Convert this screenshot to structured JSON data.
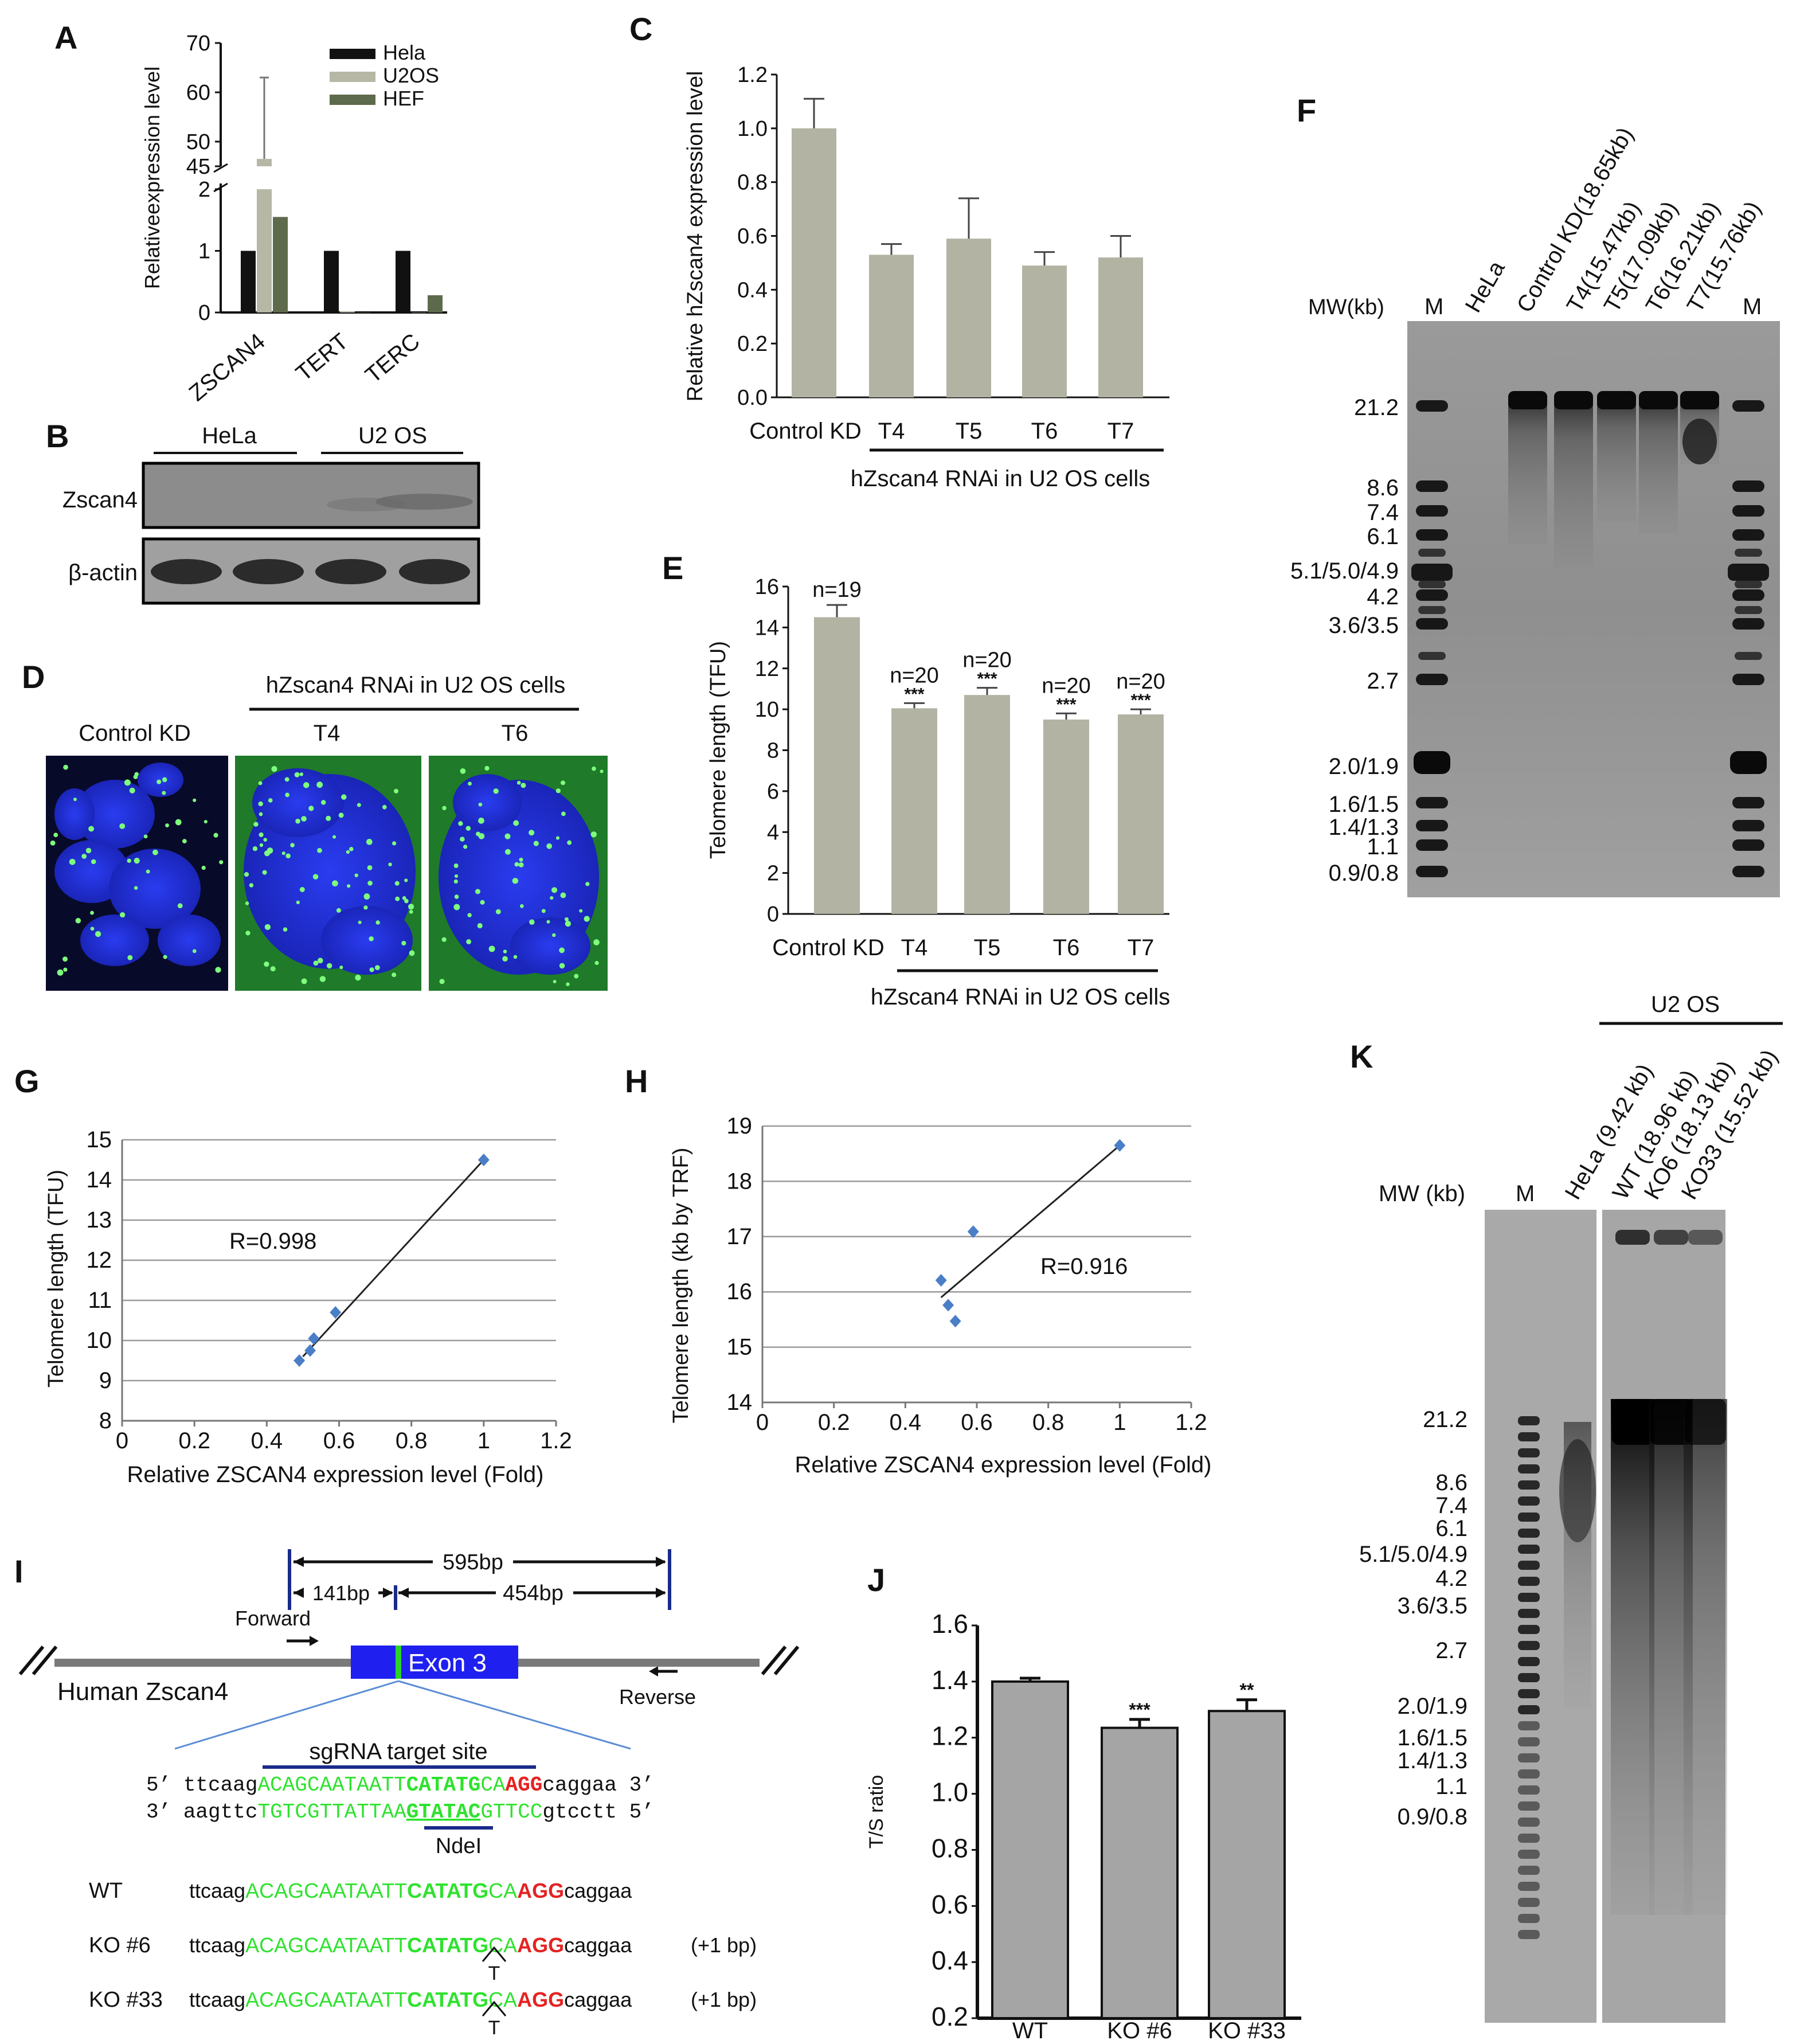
{
  "panel_letters": [
    "A",
    "B",
    "C",
    "D",
    "E",
    "F",
    "G",
    "H",
    "I",
    "J",
    "K"
  ],
  "colors": {
    "hela": "#111111",
    "u2os": "#b7b7a6",
    "hef": "#5e6a4c",
    "bar_gray": "#b2b3a3",
    "blot_bg": "#8a8a8a",
    "nucleus_blue": "#1e2fd8",
    "gfp_green": "#2bd32b",
    "seq_green": "#2ee22e",
    "seq_red": "#e52222",
    "diamond_blue": "#4a7fc8",
    "exon_blue": "#1f1ff0"
  },
  "chart_data": [
    {
      "id": "A",
      "type": "bar",
      "ylabel": "Relativeexpression level",
      "categories": [
        "ZSCAN4",
        "TERT",
        "TERC"
      ],
      "series": [
        {
          "name": "Hela",
          "values": [
            1,
            1,
            1
          ]
        },
        {
          "name": "U2OS",
          "values": [
            46.5,
            0.02,
            0
          ]
        },
        {
          "name": "HEF",
          "values": [
            1.55,
            0,
            0.28
          ]
        }
      ],
      "errors_u2os": [
        16.5,
        0,
        0
      ],
      "yticks_lower": [
        "0",
        "1",
        "2"
      ],
      "yticks_upper": [
        "45",
        "50",
        "60",
        "70"
      ],
      "broken_axis": true,
      "legend_position": "top-right"
    },
    {
      "id": "C",
      "type": "bar",
      "ylabel": "Relative hZscan4 expression level",
      "categories": [
        "Control KD",
        "T4",
        "T5",
        "T6",
        "T7"
      ],
      "values": [
        1.0,
        0.53,
        0.59,
        0.49,
        0.52
      ],
      "errors": [
        0.11,
        0.04,
        0.15,
        0.05,
        0.08
      ],
      "ylim": [
        0,
        1.2
      ],
      "yticks": [
        "0.0",
        "0.2",
        "0.4",
        "0.6",
        "0.8",
        "1.0",
        "1.2"
      ],
      "group_label": "hZscan4 RNAi in U2 OS cells"
    },
    {
      "id": "E",
      "type": "bar",
      "ylabel": "Telomere length (TFU)",
      "categories": [
        "Control KD",
        "T4",
        "T5",
        "T6",
        "T7"
      ],
      "values": [
        14.5,
        10.05,
        10.7,
        9.5,
        9.75
      ],
      "errors": [
        0.6,
        0.25,
        0.35,
        0.3,
        0.25
      ],
      "ylim": [
        0,
        16
      ],
      "yticks": [
        "0",
        "2",
        "4",
        "6",
        "8",
        "10",
        "12",
        "14",
        "16"
      ],
      "n_labels": [
        "n=19",
        "n=20",
        "n=20",
        "n=20",
        "n=20"
      ],
      "sig_labels": [
        "",
        "***",
        "***",
        "***",
        "***"
      ],
      "group_label": "hZscan4 RNAi in U2 OS cells"
    },
    {
      "id": "G",
      "type": "scatter",
      "xlabel": "Relative ZSCAN4 expression level (Fold)",
      "ylabel": "Telomere length (TFU)",
      "x": [
        1.0,
        0.53,
        0.59,
        0.49,
        0.52
      ],
      "y": [
        14.5,
        10.05,
        10.7,
        9.5,
        9.75
      ],
      "xlim": [
        0,
        1.2
      ],
      "ylim": [
        8,
        15
      ],
      "xticks": [
        "0",
        "0.2",
        "0.4",
        "0.6",
        "0.8",
        "1",
        "1.2"
      ],
      "yticks": [
        "8",
        "9",
        "10",
        "11",
        "12",
        "13",
        "14",
        "15"
      ],
      "annotation": "R=0.998",
      "fit_line": {
        "x": [
          0.5,
          1.0
        ],
        "y": [
          9.6,
          14.5
        ]
      }
    },
    {
      "id": "H",
      "type": "scatter",
      "xlabel": "Relative ZSCAN4 expression level (Fold)",
      "ylabel": "Telomere length (kb by TRF)",
      "x": [
        1.0,
        0.59,
        0.5,
        0.52,
        0.54
      ],
      "y": [
        18.65,
        17.09,
        16.21,
        15.76,
        15.47
      ],
      "xlim": [
        0,
        1.2
      ],
      "ylim": [
        14,
        19
      ],
      "xticks": [
        "0",
        "0.2",
        "0.4",
        "0.6",
        "0.8",
        "1",
        "1.2"
      ],
      "yticks": [
        "14",
        "15",
        "16",
        "17",
        "18",
        "19"
      ],
      "annotation": "R=0.916",
      "fit_line": {
        "x": [
          0.5,
          1.0
        ],
        "y": [
          15.9,
          18.65
        ]
      }
    },
    {
      "id": "J",
      "type": "bar",
      "ylabel": "T/S ratio",
      "categories": [
        "WT",
        "KO #6",
        "KO #33"
      ],
      "values": [
        1.4,
        1.235,
        1.295
      ],
      "errors": [
        0.012,
        0.03,
        0.04
      ],
      "ylim": [
        0.2,
        1.6
      ],
      "yticks": [
        "0.2",
        "0.4",
        "0.6",
        "0.8",
        "1.0",
        "1.2",
        "1.4",
        "1.6"
      ],
      "sig_labels": [
        "",
        "***",
        "**"
      ]
    }
  ],
  "panel_b": {
    "groups": [
      "HeLa",
      "U2 OS"
    ],
    "rows": [
      "Zscan4",
      "β-actin"
    ]
  },
  "panel_d": {
    "group_label": "hZscan4 RNAi in U2 OS cells",
    "labels": [
      "Control KD",
      "T4",
      "T6"
    ]
  },
  "panel_f": {
    "mw_header": "MW(kb)",
    "lanes": [
      "M",
      "HeLa",
      "Control KD(18.65kb)",
      "T4(15.47kb)",
      "T5(17.09kb)",
      "T6(16.21kb)",
      "T7(15.76kb)",
      "M"
    ],
    "markers": [
      "21.2",
      "8.6",
      "7.4",
      "6.1",
      "5.1/5.0/4.9",
      "4.2",
      "3.6/3.5",
      "2.7",
      "2.0/1.9",
      "1.6/1.5",
      "1.4/1.3",
      "1.1",
      "0.9/0.8"
    ]
  },
  "panel_i": {
    "dist_595": "595bp",
    "dist_141": "141bp",
    "dist_454": "454bp",
    "forward": "Forward",
    "reverse": "Reverse",
    "gene": "Human Zscan4",
    "exon": "Exon 3",
    "sgrna": "sgRNA target site",
    "ndei": "NdeI",
    "top": {
      "p5": "5’",
      "a": "ttcaag",
      "b": "ACAGCAATAATT",
      "c": "CATATG",
      "d": "CA",
      "e": "AGG",
      "f": "caggaa",
      "p3": "3’"
    },
    "bottom": {
      "p3": "3’",
      "a": "aagttc",
      "b": "TGTCGTTATTAA",
      "c": "GTATAC",
      "d": "GTTCC",
      "f": "gtcctt",
      "p5": "5’"
    },
    "genotypes": [
      {
        "name": "WT",
        "a": "ttcaag",
        "b": "ACAGCAATAATT",
        "c": "CATATG",
        "d": "CA",
        "e": "AGG",
        "f": "caggaa",
        "ins": "",
        "tag": ""
      },
      {
        "name": "KO #6",
        "a": "ttcaag",
        "b": "ACAGCAATAATT",
        "c": "CATATG",
        "d": "CA",
        "e": "AGG",
        "f": "caggaa",
        "ins": "T",
        "tag": "(+1 bp)"
      },
      {
        "name": "KO #33",
        "a": "ttcaag",
        "b": "ACAGCAATAATT",
        "c": "CATATG",
        "d": "CA",
        "e": "AGG",
        "f": "caggaa",
        "ins": "T",
        "tag": "(+1 bp)"
      }
    ]
  },
  "panel_k": {
    "header": "U2 OS",
    "mw_header": "MW (kb)",
    "lanes": [
      "M",
      "HeLa (9.42 kb)",
      "WT (18.96 kb)",
      "KO6 (18.13 kb)",
      "KO33 (15.52 kb)"
    ],
    "markers": [
      "21.2",
      "8.6",
      "7.4",
      "6.1",
      "5.1/5.0/4.9",
      "4.2",
      "3.6/3.5",
      "2.7",
      "2.0/1.9",
      "1.6/1.5",
      "1.4/1.3",
      "1.1",
      "0.9/0.8"
    ]
  }
}
